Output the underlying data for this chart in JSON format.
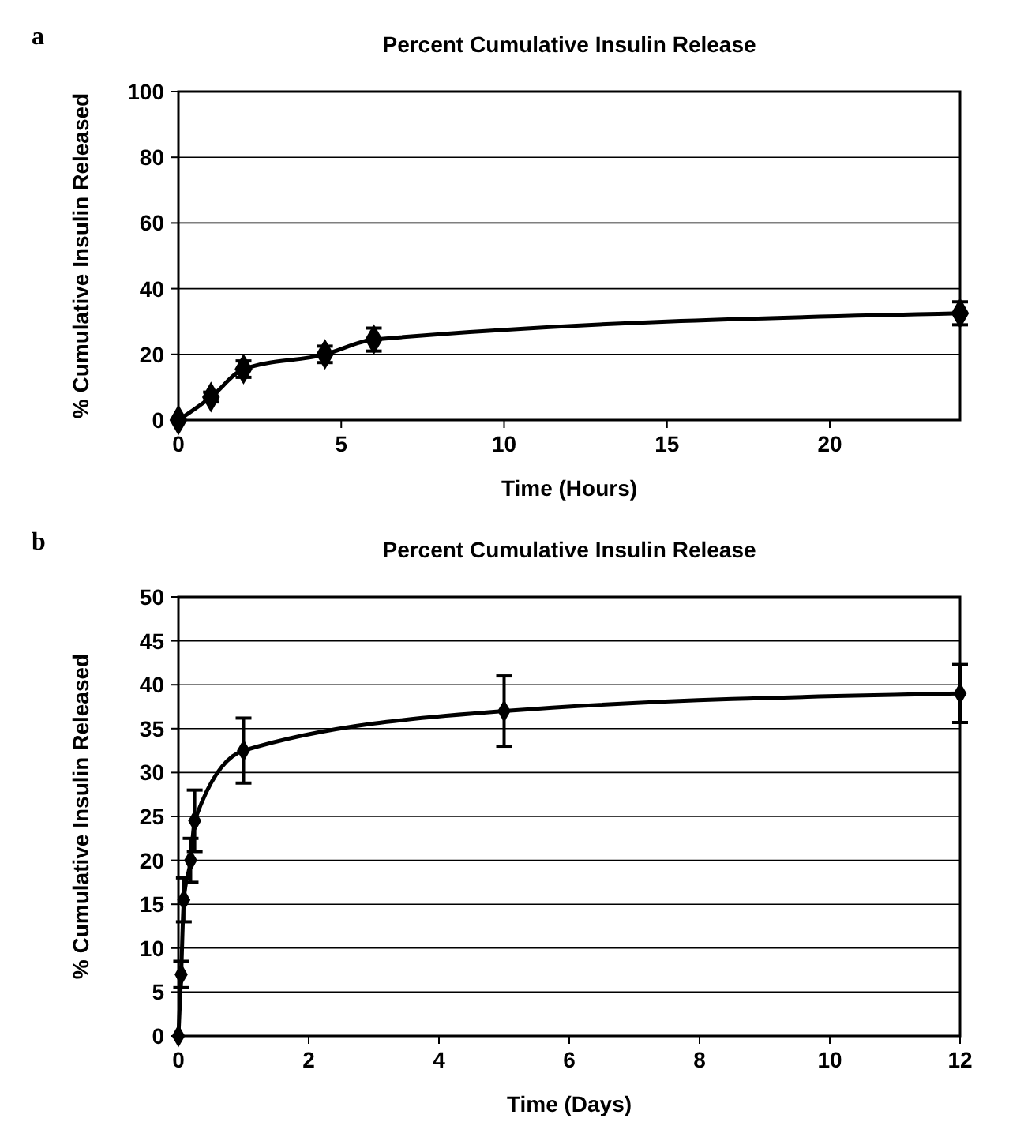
{
  "chart_data": [
    {
      "type": "line",
      "title": "Percent Cumulative Insulin Release",
      "xlabel": "Time (Hours)",
      "ylabel": "% Cumulative Insulin Released",
      "annotations": [
        "a"
      ],
      "x": [
        0,
        1,
        2,
        4.5,
        6,
        24
      ],
      "series": [
        {
          "color": "#000000",
          "values": [
            0,
            7,
            15.5,
            20,
            24.5,
            32.5
          ],
          "errors": [
            null,
            1.5,
            2.5,
            2.5,
            3.5,
            3.5
          ]
        }
      ],
      "xlim": [
        0,
        24
      ],
      "xticks": [
        0,
        5,
        10,
        15,
        20
      ],
      "ylim": [
        0,
        100
      ],
      "yticks": [
        0,
        20,
        40,
        60,
        80,
        100
      ],
      "grid": "y",
      "marker": "diamond",
      "line_style": "solid"
    },
    {
      "type": "line",
      "title": "Percent Cumulative Insulin Release",
      "xlabel": "Time (Days)",
      "ylabel": "% Cumulative Insulin Released",
      "annotations": [
        "b"
      ],
      "x": [
        0,
        0.042,
        0.083,
        0.1875,
        0.25,
        1,
        5,
        12
      ],
      "series": [
        {
          "color": "#000000",
          "values": [
            0,
            7,
            15.5,
            20,
            24.5,
            32.5,
            37,
            39
          ],
          "errors": [
            null,
            1.5,
            2.5,
            2.5,
            3.5,
            3.7,
            4,
            3.3
          ]
        }
      ],
      "xlim": [
        0,
        12
      ],
      "xticks": [
        0,
        2,
        4,
        6,
        8,
        10,
        12
      ],
      "ylim": [
        0,
        50
      ],
      "yticks": [
        0,
        5,
        10,
        15,
        20,
        25,
        30,
        35,
        40,
        45,
        50
      ],
      "grid": "y",
      "marker": "diamond",
      "line_style": "solid"
    }
  ]
}
